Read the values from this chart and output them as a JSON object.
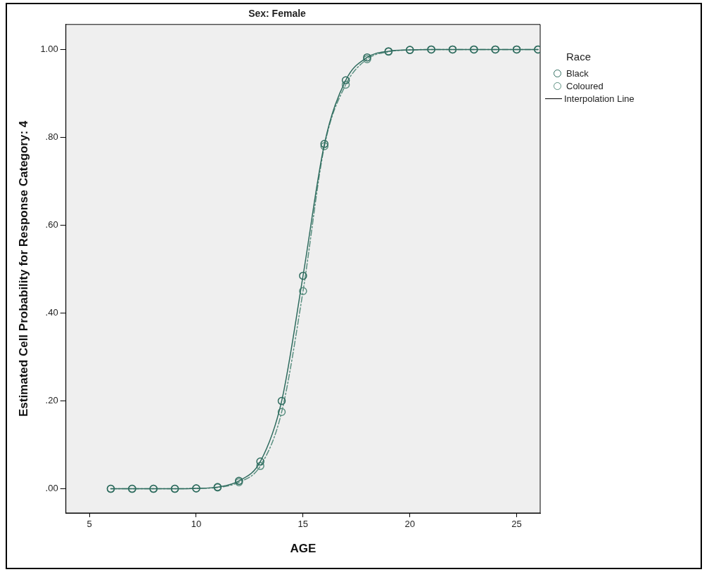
{
  "chart_data": {
    "type": "line",
    "title": "Sex: Female",
    "xlabel": "AGE",
    "ylabel": "Estimated Cell Probability for Response Category: 4",
    "legend_title": "Race",
    "x": [
      6,
      7,
      8,
      9,
      10,
      11,
      12,
      13,
      14,
      15,
      16,
      17,
      18,
      19,
      20,
      21,
      22,
      23,
      24,
      25,
      26
    ],
    "series": [
      {
        "name": "Black",
        "color": "#2e6b5e",
        "line_style": "solid",
        "values": [
          0,
          0,
          0,
          0,
          0.001,
          0.004,
          0.018,
          0.062,
          0.2,
          0.485,
          0.785,
          0.93,
          0.982,
          0.996,
          0.999,
          1,
          1,
          1,
          1,
          1,
          1
        ]
      },
      {
        "name": "Coloured",
        "color": "#5a8f80",
        "line_style": "dashed",
        "values": [
          0,
          0,
          0,
          0,
          0.001,
          0.003,
          0.015,
          0.052,
          0.175,
          0.45,
          0.78,
          0.92,
          0.978,
          0.995,
          0.999,
          1,
          1,
          1,
          1,
          1,
          1
        ]
      }
    ],
    "marker": "circle",
    "legend": "top right",
    "grid": false,
    "annotations": [
      "Interpolation Line"
    ],
    "xlim": [
      3.9,
      26.1
    ],
    "xticks": [
      5,
      10,
      15,
      20,
      25
    ],
    "ylim": [
      -0.055,
      1.057
    ],
    "yticks": [
      {
        "value": 0,
        "label": ".00"
      },
      {
        "value": 0.2,
        "label": ".20"
      },
      {
        "value": 0.4,
        "label": ".40"
      },
      {
        "value": 0.6,
        "label": ".60"
      },
      {
        "value": 0.8,
        "label": ".80"
      },
      {
        "value": 1,
        "label": "1.00"
      }
    ]
  }
}
